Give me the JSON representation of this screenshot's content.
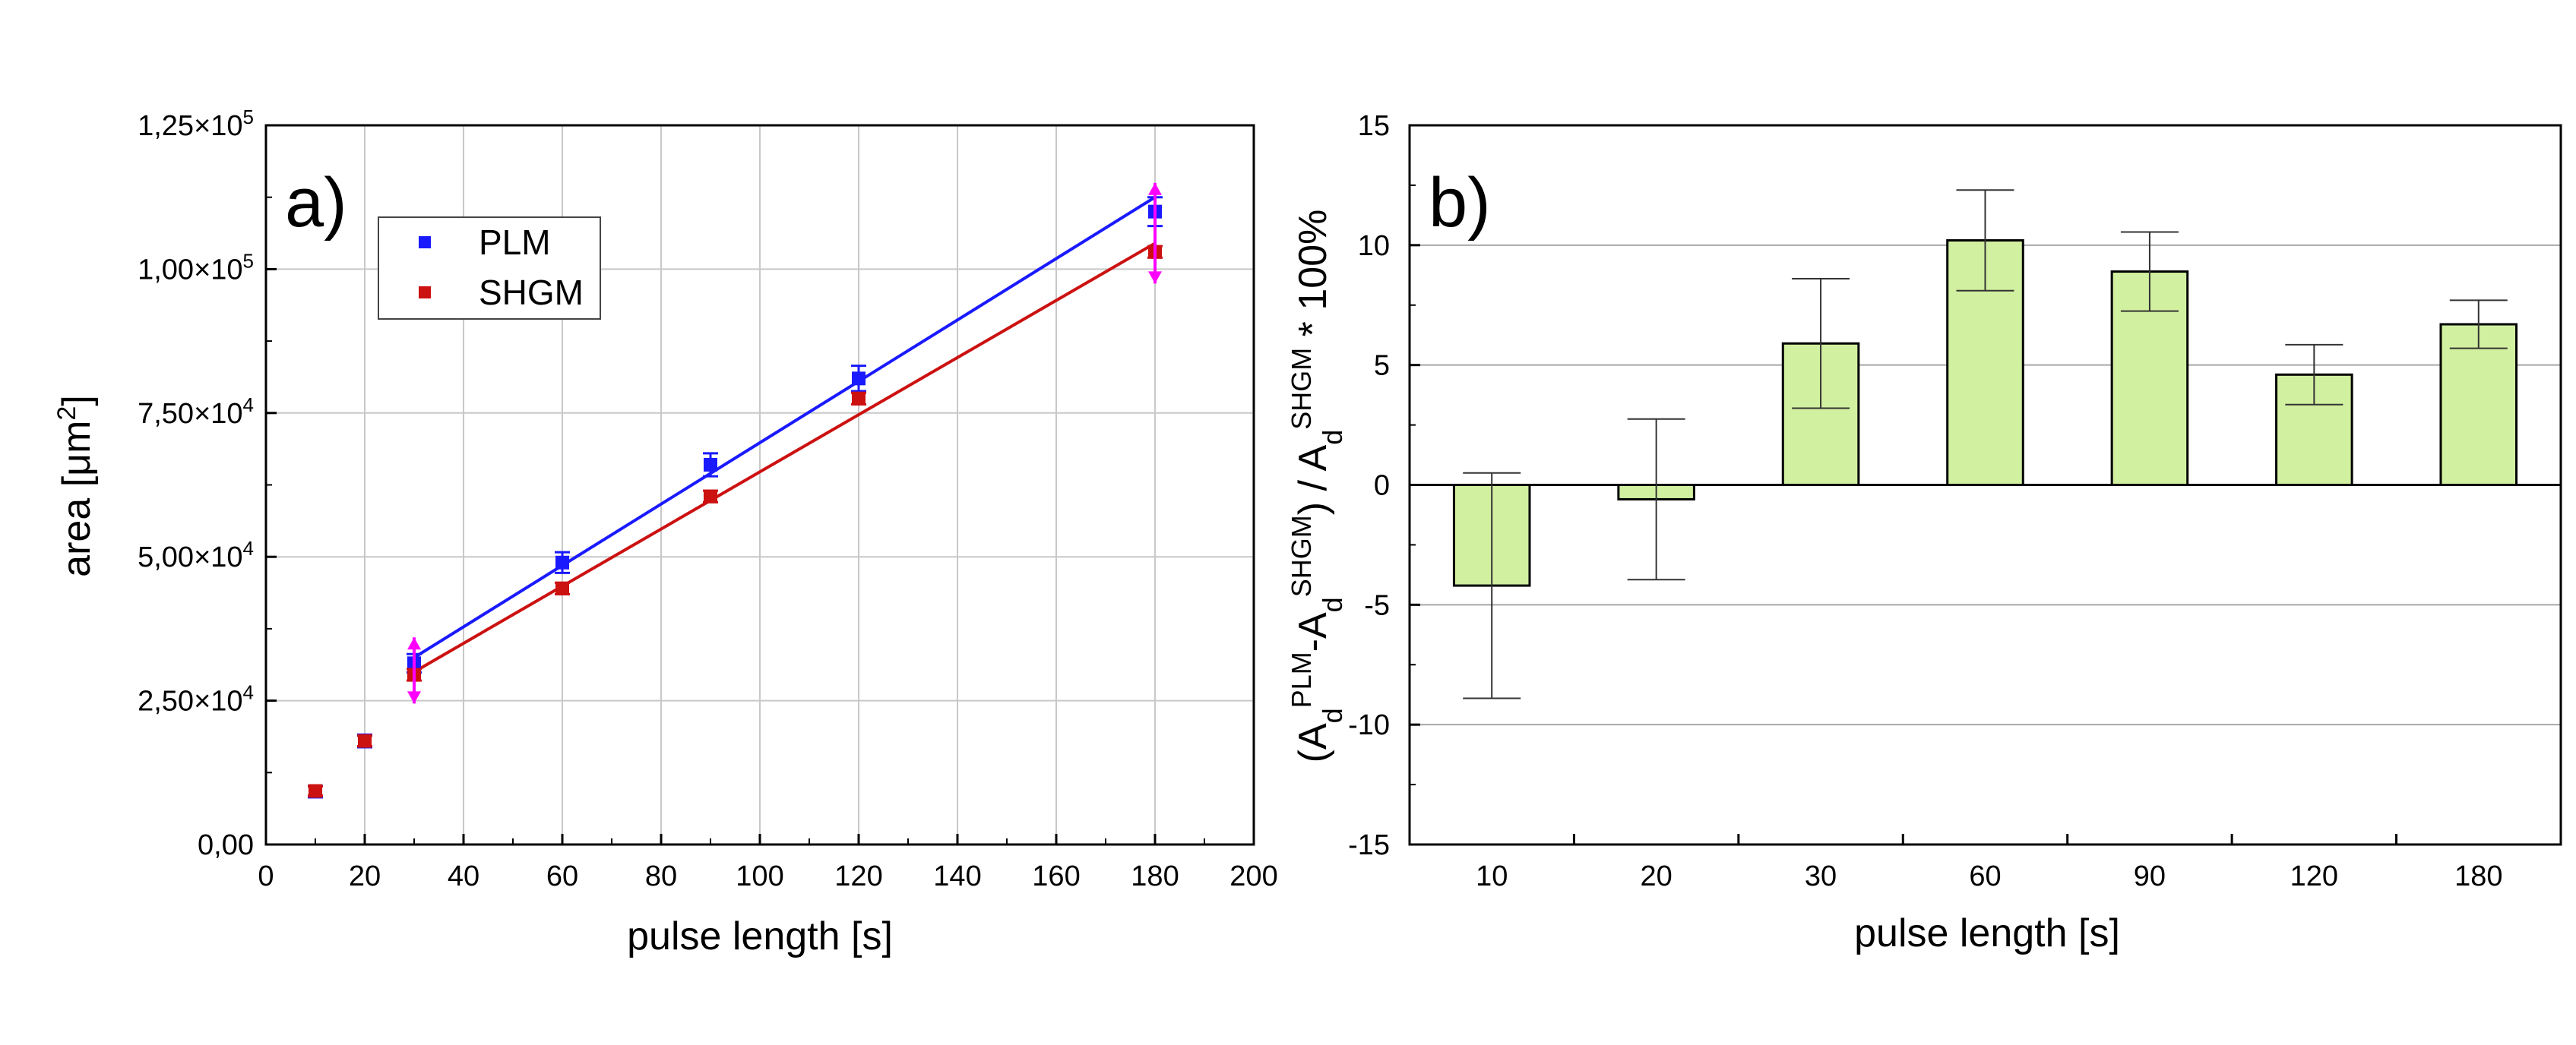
{
  "chart_data": [
    {
      "type": "scatter",
      "panel_label": "a)",
      "xlabel": "pulse length [s]",
      "ylabel": {
        "main": "area [",
        "unit": "μm",
        "sup": "2",
        "close": "]"
      },
      "xlim": [
        0,
        200
      ],
      "ylim": [
        0,
        125000
      ],
      "grid": true,
      "legend_position": "top-left",
      "x_ticks": [
        0,
        20,
        40,
        60,
        80,
        100,
        120,
        140,
        160,
        180,
        200
      ],
      "x_tick_labels": [
        "0",
        "20",
        "40",
        "60",
        "80",
        "100",
        "120",
        "140",
        "160",
        "180",
        "200"
      ],
      "y_ticks": [
        {
          "value": 0,
          "mantissa": "0,00",
          "exp": ""
        },
        {
          "value": 25000,
          "mantissa": "2,50×10",
          "exp": "4"
        },
        {
          "value": 50000,
          "mantissa": "5,00×10",
          "exp": "4"
        },
        {
          "value": 75000,
          "mantissa": "7,50×10",
          "exp": "4"
        },
        {
          "value": 100000,
          "mantissa": "1,00×10",
          "exp": "5"
        },
        {
          "value": 125000,
          "mantissa": "1,25×10",
          "exp": "5"
        }
      ],
      "series": [
        {
          "name": "PLM",
          "color": "#1a1aff",
          "x": [
            10,
            20,
            30,
            60,
            90,
            120,
            180
          ],
          "y": [
            9200,
            18000,
            31500,
            49000,
            66000,
            81000,
            110000
          ],
          "err": [
            1000,
            1100,
            1600,
            1800,
            2000,
            2200,
            2500
          ],
          "fit": {
            "x": [
              30,
              180
            ],
            "y": [
              32500,
              112500
            ]
          }
        },
        {
          "name": "SHGM",
          "color": "#cc1111",
          "x": [
            10,
            20,
            30,
            60,
            90,
            120,
            180
          ],
          "y": [
            9300,
            18000,
            29500,
            44500,
            60500,
            77500,
            103000
          ],
          "err": [
            800,
            900,
            1000,
            1000,
            1000,
            1000,
            1000
          ],
          "fit": {
            "x": [
              30,
              180
            ],
            "y": [
              30000,
              104500
            ]
          }
        }
      ],
      "markers": [
        {
          "x": 30,
          "y_low": 24500,
          "y_high": 36000,
          "color": "#ff00ff"
        },
        {
          "x": 180,
          "y_low": 97500,
          "y_high": 115000,
          "color": "#ff00ff"
        }
      ]
    },
    {
      "type": "bar",
      "panel_label": "b)",
      "xlabel": "pulse length [s]",
      "ylabel": "(A_d^PLM - A_d^SHGM) / A_d^SHGM * 100%",
      "ylabel_parts": {
        "open": "(A",
        "d1": "d",
        "plm": "PLM",
        "minus": "-A",
        "d2": "d",
        "shgm1": "SHGM",
        "mid": ") / A",
        "d3": "d",
        "shgm2": "SHGM",
        "tail": " * 100%"
      },
      "ylim": [
        -15,
        15
      ],
      "grid": true,
      "bar_color": "#d1f0a0",
      "categories": [
        "10",
        "20",
        "30",
        "60",
        "90",
        "120",
        "180"
      ],
      "values": [
        -4.2,
        -0.6,
        5.9,
        10.2,
        8.9,
        4.6,
        6.7
      ],
      "errors": [
        4.7,
        3.35,
        2.7,
        2.1,
        1.65,
        1.25,
        1.0
      ],
      "y_ticks": [
        -15,
        -10,
        -5,
        0,
        5,
        10,
        15
      ],
      "y_tick_labels": [
        "-15",
        "-10",
        "-5",
        "0",
        "5",
        "10",
        "15"
      ]
    }
  ]
}
